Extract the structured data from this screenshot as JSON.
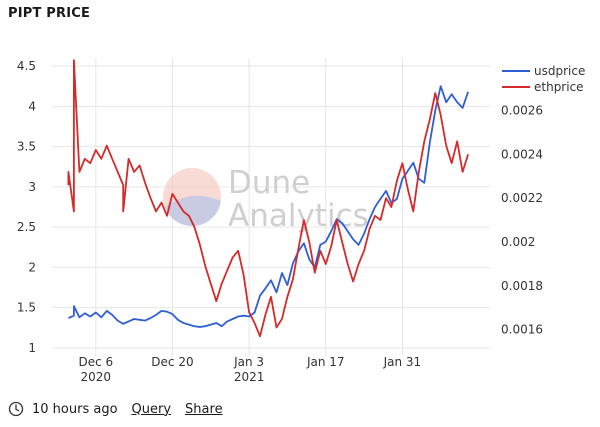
{
  "page": {
    "title": "PIPT PRICE"
  },
  "footer": {
    "updated": "10 hours ago",
    "query_label": "Query",
    "share_label": "Share",
    "clock_icon": "clock-icon"
  },
  "chart_data": {
    "type": "line",
    "title": "PIPT PRICE",
    "x_ticks": [
      {
        "date": "2020-12-06",
        "line1": "Dec 6",
        "line2": "2020"
      },
      {
        "date": "2020-12-20",
        "line1": "Dec 20",
        "line2": ""
      },
      {
        "date": "2021-01-03",
        "line1": "Jan 3",
        "line2": "2021"
      },
      {
        "date": "2021-01-17",
        "line1": "Jan 17",
        "line2": ""
      },
      {
        "date": "2021-01-31",
        "line1": "Jan 31",
        "line2": ""
      }
    ],
    "y_left": {
      "min": 0.9,
      "max": 4.6,
      "ticks": [
        "1",
        "1.5",
        "2",
        "2.5",
        "3",
        "3.5",
        "4",
        "4.5"
      ]
    },
    "y_right": {
      "min": 0.00148,
      "max": 0.00284,
      "ticks": [
        "0.0016",
        "0.0018",
        "0.002",
        "0.0022",
        "0.0024",
        "0.0026"
      ]
    },
    "grid": true,
    "legend_placement": "top-right",
    "series": [
      {
        "name": "usdprice",
        "axis": "left",
        "color": "#2f5fd6",
        "points": [
          [
            "2020-12-01",
            1.37
          ],
          [
            "2020-12-02",
            1.4
          ],
          [
            "2020-12-02",
            1.52
          ],
          [
            "2020-12-03",
            1.38
          ],
          [
            "2020-12-04",
            1.43
          ],
          [
            "2020-12-05",
            1.39
          ],
          [
            "2020-12-06",
            1.44
          ],
          [
            "2020-12-07",
            1.38
          ],
          [
            "2020-12-08",
            1.46
          ],
          [
            "2020-12-09",
            1.41
          ],
          [
            "2020-12-10",
            1.34
          ],
          [
            "2020-12-11",
            1.3
          ],
          [
            "2020-12-12",
            1.33
          ],
          [
            "2020-12-13",
            1.36
          ],
          [
            "2020-12-14",
            1.35
          ],
          [
            "2020-12-15",
            1.34
          ],
          [
            "2020-12-16",
            1.37
          ],
          [
            "2020-12-17",
            1.41
          ],
          [
            "2020-12-18",
            1.46
          ],
          [
            "2020-12-19",
            1.45
          ],
          [
            "2020-12-20",
            1.42
          ],
          [
            "2020-12-21",
            1.35
          ],
          [
            "2020-12-22",
            1.31
          ],
          [
            "2020-12-23",
            1.29
          ],
          [
            "2020-12-24",
            1.27
          ],
          [
            "2020-12-25",
            1.26
          ],
          [
            "2020-12-26",
            1.27
          ],
          [
            "2020-12-27",
            1.29
          ],
          [
            "2020-12-28",
            1.31
          ],
          [
            "2020-12-29",
            1.27
          ],
          [
            "2020-12-30",
            1.33
          ],
          [
            "2020-12-31",
            1.36
          ],
          [
            "2021-01-01",
            1.39
          ],
          [
            "2021-01-02",
            1.4
          ],
          [
            "2021-01-03",
            1.39
          ],
          [
            "2021-01-04",
            1.44
          ],
          [
            "2021-01-05",
            1.65
          ],
          [
            "2021-01-06",
            1.74
          ],
          [
            "2021-01-07",
            1.84
          ],
          [
            "2021-01-08",
            1.69
          ],
          [
            "2021-01-09",
            1.93
          ],
          [
            "2021-01-10",
            1.78
          ],
          [
            "2021-01-11",
            2.05
          ],
          [
            "2021-01-12",
            2.2
          ],
          [
            "2021-01-13",
            2.3
          ],
          [
            "2021-01-14",
            2.1
          ],
          [
            "2021-01-15",
            2.0
          ],
          [
            "2021-01-16",
            2.28
          ],
          [
            "2021-01-17",
            2.32
          ],
          [
            "2021-01-18",
            2.45
          ],
          [
            "2021-01-19",
            2.6
          ],
          [
            "2021-01-20",
            2.55
          ],
          [
            "2021-01-21",
            2.45
          ],
          [
            "2021-01-22",
            2.35
          ],
          [
            "2021-01-23",
            2.28
          ],
          [
            "2021-01-24",
            2.42
          ],
          [
            "2021-01-25",
            2.6
          ],
          [
            "2021-01-26",
            2.75
          ],
          [
            "2021-01-27",
            2.85
          ],
          [
            "2021-01-28",
            2.95
          ],
          [
            "2021-01-29",
            2.8
          ],
          [
            "2021-01-30",
            2.85
          ],
          [
            "2021-01-31",
            3.1
          ],
          [
            "2021-02-01",
            3.2
          ],
          [
            "2021-02-02",
            3.3
          ],
          [
            "2021-02-03",
            3.1
          ],
          [
            "2021-02-04",
            3.05
          ],
          [
            "2021-02-05",
            3.55
          ],
          [
            "2021-02-06",
            3.95
          ],
          [
            "2021-02-07",
            4.25
          ],
          [
            "2021-02-08",
            4.05
          ],
          [
            "2021-02-09",
            4.15
          ],
          [
            "2021-02-10",
            4.05
          ],
          [
            "2021-02-11",
            3.98
          ],
          [
            "2021-02-12",
            4.18
          ]
        ]
      },
      {
        "name": "ethprice",
        "axis": "right",
        "color": "#d42a2a",
        "points": [
          [
            "2020-12-01",
            0.00226
          ],
          [
            "2020-12-01",
            0.00232
          ],
          [
            "2020-12-02",
            0.00214
          ],
          [
            "2020-12-02",
            0.00283
          ],
          [
            "2020-12-03",
            0.00232
          ],
          [
            "2020-12-04",
            0.00238
          ],
          [
            "2020-12-05",
            0.00236
          ],
          [
            "2020-12-06",
            0.00242
          ],
          [
            "2020-12-07",
            0.00238
          ],
          [
            "2020-12-08",
            0.00244
          ],
          [
            "2020-12-09",
            0.00238
          ],
          [
            "2020-12-10",
            0.00232
          ],
          [
            "2020-12-11",
            0.00226
          ],
          [
            "2020-12-11",
            0.00214
          ],
          [
            "2020-12-12",
            0.00238
          ],
          [
            "2020-12-13",
            0.00232
          ],
          [
            "2020-12-14",
            0.00235
          ],
          [
            "2020-12-15",
            0.00227
          ],
          [
            "2020-12-16",
            0.0022
          ],
          [
            "2020-12-17",
            0.00214
          ],
          [
            "2020-12-18",
            0.00218
          ],
          [
            "2020-12-19",
            0.00212
          ],
          [
            "2020-12-20",
            0.00222
          ],
          [
            "2020-12-21",
            0.00218
          ],
          [
            "2020-12-22",
            0.00214
          ],
          [
            "2020-12-23",
            0.00212
          ],
          [
            "2020-12-24",
            0.00207
          ],
          [
            "2020-12-25",
            0.00199
          ],
          [
            "2020-12-26",
            0.00189
          ],
          [
            "2020-12-27",
            0.00181
          ],
          [
            "2020-12-28",
            0.00173
          ],
          [
            "2020-12-29",
            0.00181
          ],
          [
            "2020-12-30",
            0.00187
          ],
          [
            "2020-12-31",
            0.00193
          ],
          [
            "2021-01-01",
            0.00196
          ],
          [
            "2021-01-02",
            0.00185
          ],
          [
            "2021-01-03",
            0.00168
          ],
          [
            "2021-01-04",
            0.00163
          ],
          [
            "2021-01-05",
            0.00157
          ],
          [
            "2021-01-06",
            0.00167
          ],
          [
            "2021-01-07",
            0.00175
          ],
          [
            "2021-01-08",
            0.00161
          ],
          [
            "2021-01-09",
            0.00165
          ],
          [
            "2021-01-10",
            0.00175
          ],
          [
            "2021-01-11",
            0.00183
          ],
          [
            "2021-01-12",
            0.00197
          ],
          [
            "2021-01-13",
            0.0021
          ],
          [
            "2021-01-14",
            0.002
          ],
          [
            "2021-01-15",
            0.00186
          ],
          [
            "2021-01-16",
            0.00196
          ],
          [
            "2021-01-17",
            0.0019
          ],
          [
            "2021-01-18",
            0.00198
          ],
          [
            "2021-01-19",
            0.0021
          ],
          [
            "2021-01-20",
            0.002
          ],
          [
            "2021-01-21",
            0.0019
          ],
          [
            "2021-01-22",
            0.00182
          ],
          [
            "2021-01-23",
            0.0019
          ],
          [
            "2021-01-24",
            0.00196
          ],
          [
            "2021-01-25",
            0.00206
          ],
          [
            "2021-01-26",
            0.00212
          ],
          [
            "2021-01-27",
            0.0021
          ],
          [
            "2021-01-28",
            0.0022
          ],
          [
            "2021-01-29",
            0.00216
          ],
          [
            "2021-01-30",
            0.00228
          ],
          [
            "2021-01-31",
            0.00236
          ],
          [
            "2021-02-01",
            0.00224
          ],
          [
            "2021-02-02",
            0.00214
          ],
          [
            "2021-02-03",
            0.00232
          ],
          [
            "2021-02-04",
            0.00246
          ],
          [
            "2021-02-05",
            0.00256
          ],
          [
            "2021-02-06",
            0.00268
          ],
          [
            "2021-02-07",
            0.00258
          ],
          [
            "2021-02-08",
            0.00244
          ],
          [
            "2021-02-09",
            0.00236
          ],
          [
            "2021-02-10",
            0.00246
          ],
          [
            "2021-02-11",
            0.00232
          ],
          [
            "2021-02-12",
            0.0024
          ]
        ]
      }
    ]
  }
}
